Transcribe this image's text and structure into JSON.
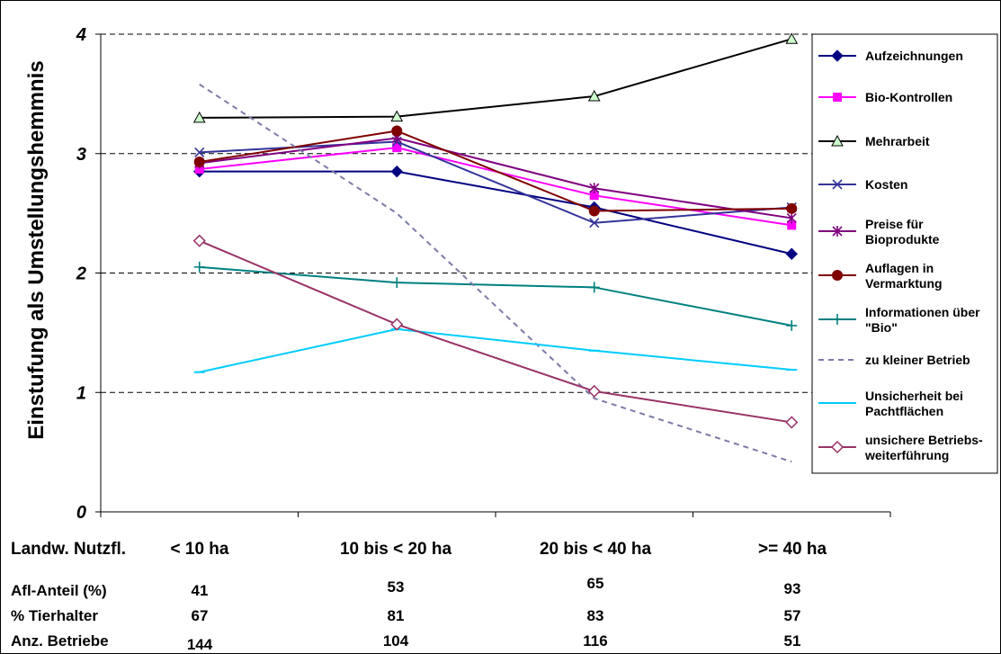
{
  "chart_data": {
    "type": "line",
    "ylabel": "Einstufung als Umstellungshemmnis",
    "ylim": [
      0,
      4
    ],
    "yticks": [
      "0",
      "1",
      "2",
      "3",
      "4"
    ],
    "grid": "horizontal dashed",
    "legend": "right",
    "x_header": "Landw. Nutzfl.",
    "categories": [
      "< 10 ha",
      "10 bis < 20 ha",
      "20 bis < 40 ha",
      ">= 40 ha"
    ],
    "series": [
      {
        "name": "Aufzeichnungen",
        "values": [
          2.85,
          2.85,
          2.55,
          2.16
        ],
        "color": "#000080",
        "marker": "diamond",
        "dash": false,
        "width": 2
      },
      {
        "name": "Bio-Kontrollen",
        "values": [
          2.87,
          3.05,
          2.65,
          2.4
        ],
        "color": "#ff00ff",
        "marker": "square",
        "dash": false,
        "width": 2
      },
      {
        "name": "Mehrarbeit",
        "values": [
          3.3,
          3.31,
          3.48,
          3.96
        ],
        "color": "#000000",
        "marker": "triangle",
        "dash": false,
        "width": 2
      },
      {
        "name": "Kosten",
        "values": [
          3.01,
          3.1,
          2.42,
          2.55
        ],
        "color": "#333399",
        "marker": "x",
        "dash": false,
        "width": 2
      },
      {
        "name": "Preise für Bioprodukte",
        "values": [
          2.92,
          3.13,
          2.71,
          2.46
        ],
        "color": "#800080",
        "marker": "star",
        "dash": false,
        "width": 2
      },
      {
        "name": "Auflagen in Vermarktung",
        "values": [
          2.93,
          3.19,
          2.52,
          2.54
        ],
        "color": "#800000",
        "marker": "circle",
        "dash": false,
        "width": 2
      },
      {
        "name": "Informationen über \"Bio\"",
        "values": [
          2.05,
          1.92,
          1.88,
          1.56
        ],
        "color": "#008080",
        "marker": "plus",
        "dash": false,
        "width": 2
      },
      {
        "name": "zu kleiner Betrieb",
        "values": [
          3.58,
          2.5,
          0.95,
          0.42
        ],
        "color": "#7b7ba8",
        "marker": "none",
        "dash": true,
        "width": 2
      },
      {
        "name": "Unsicherheit bei Pachtflächen",
        "values": [
          1.17,
          1.53,
          1.35,
          1.19
        ],
        "color": "#00ccff",
        "marker": "dash",
        "dash": false,
        "width": 2
      },
      {
        "name": "unsichere Betriebs-weiterführung",
        "values": [
          2.27,
          1.57,
          1.01,
          0.75
        ],
        "color": "#993366",
        "marker": "diamond-open",
        "dash": false,
        "width": 2
      }
    ],
    "legend_lines": [
      [
        "Aufzeichnungen"
      ],
      [
        "Bio-Kontrollen"
      ],
      [
        "Mehrarbeit"
      ],
      [
        "Kosten"
      ],
      [
        "Preise für",
        "Bioprodukte"
      ],
      [
        "Auflagen in",
        "Vermarktung"
      ],
      [
        "Informationen über",
        "\"Bio\""
      ],
      [
        "zu kleiner Betrieb"
      ],
      [
        "Unsicherheit bei",
        "Pachtflächen"
      ],
      [
        "unsichere Betriebs-",
        "weiterführung"
      ]
    ],
    "table": [
      {
        "label": "Afl-Anteil (%)",
        "values": [
          "41",
          "53",
          "65",
          "93"
        ]
      },
      {
        "label": "% Tierhalter",
        "values": [
          "67",
          "81",
          "83",
          "57"
        ]
      },
      {
        "label": "Anz. Betriebe",
        "values": [
          "144",
          "104",
          "116",
          "51"
        ]
      }
    ]
  }
}
